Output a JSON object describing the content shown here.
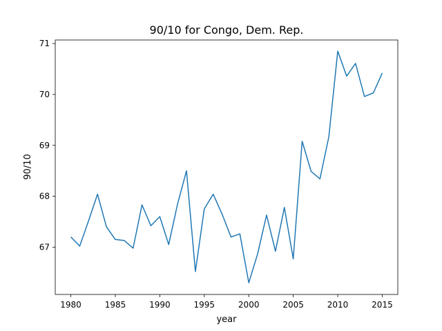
{
  "chart_data": {
    "type": "line",
    "title": "90/10 for Congo, Dem. Rep.",
    "xlabel": "year",
    "ylabel": "90/10",
    "xlim": [
      1978.25,
      2016.75
    ],
    "ylim": [
      66.07,
      71.07
    ],
    "x_ticks": [
      1980,
      1985,
      1990,
      1995,
      2000,
      2005,
      2010,
      2015
    ],
    "y_ticks": [
      67,
      68,
      69,
      70,
      71
    ],
    "grid": false,
    "series": [
      {
        "color": "#1f77b4",
        "x": [
          1980,
          1981,
          1982,
          1983,
          1984,
          1985,
          1986,
          1987,
          1988,
          1989,
          1990,
          1991,
          1992,
          1993,
          1994,
          1995,
          1996,
          1997,
          1998,
          1999,
          2000,
          2001,
          2002,
          2003,
          2004,
          2005,
          2006,
          2007,
          2008,
          2009,
          2010,
          2011,
          2012,
          2013,
          2014,
          2015
        ],
        "y": [
          67.2,
          67.02,
          67.52,
          68.04,
          67.4,
          67.15,
          67.13,
          66.98,
          67.83,
          67.42,
          67.6,
          67.05,
          67.85,
          68.5,
          66.52,
          67.75,
          68.04,
          67.65,
          67.2,
          67.26,
          66.3,
          66.87,
          67.63,
          66.92,
          67.78,
          66.77,
          69.08,
          68.49,
          68.34,
          69.17,
          70.85,
          70.36,
          70.61,
          69.96,
          70.03,
          70.42
        ]
      }
    ]
  }
}
